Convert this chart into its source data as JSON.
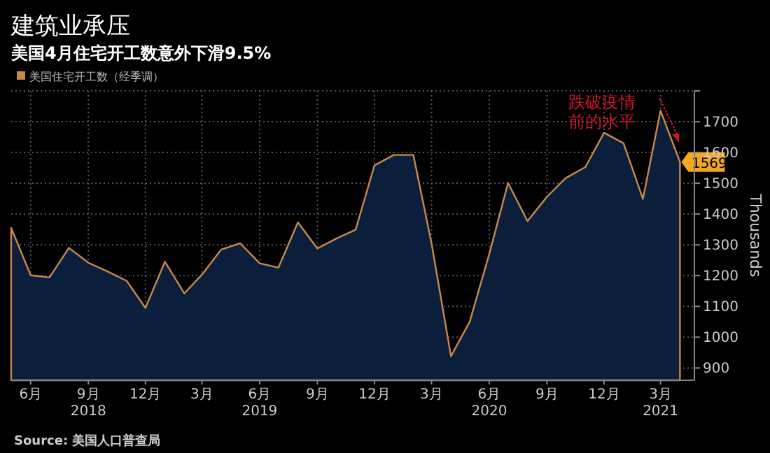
{
  "chart_data": {
    "type": "area",
    "title": "建筑业承压",
    "subtitle": "美国4月住宅开工数意外下滑9.5%",
    "ylabel": "Thousands",
    "annotations": [
      "跌破疫情前的水平",
      "Source: 美国人口普查局"
    ],
    "x": [
      "2018-05",
      "2018-06",
      "2018-07",
      "2018-08",
      "2018-09",
      "2018-10",
      "2018-11",
      "2018-12",
      "2019-01",
      "2019-02",
      "2019-03",
      "2019-04",
      "2019-05",
      "2019-06",
      "2019-07",
      "2019-08",
      "2019-09",
      "2019-10",
      "2019-11",
      "2019-12",
      "2020-01",
      "2020-02",
      "2020-03",
      "2020-04",
      "2020-05",
      "2020-06",
      "2020-07",
      "2020-08",
      "2020-09",
      "2020-10",
      "2020-11",
      "2020-12",
      "2021-01",
      "2021-02",
      "2021-03",
      "2021-04"
    ],
    "series": [
      {
        "name": "美国住宅开工数（经季调）",
        "color": "#c8894a",
        "values": [
          1355,
          1201,
          1194,
          1290,
          1242,
          1214,
          1183,
          1095,
          1245,
          1142,
          1203,
          1285,
          1305,
          1240,
          1226,
          1373,
          1288,
          1320,
          1349,
          1558,
          1592,
          1592,
          1305,
          938,
          1051,
          1270,
          1501,
          1377,
          1456,
          1517,
          1552,
          1664,
          1630,
          1449,
          1736,
          1569
        ],
        "value_labels": [
          null,
          null,
          null,
          null,
          null,
          null,
          null,
          null,
          null,
          null,
          null,
          null,
          null,
          null,
          null,
          null,
          null,
          null,
          null,
          null,
          null,
          null,
          null,
          null,
          null,
          null,
          null,
          null,
          null,
          null,
          null,
          null,
          null,
          null,
          null,
          "1569"
        ]
      }
    ],
    "xlim": [
      "2018-05",
      "2021-04-24"
    ],
    "xticks": [
      {
        "value": "2018-06",
        "label": "6月"
      },
      {
        "value": "2018-09",
        "label": "9月\n2018"
      },
      {
        "value": "2018-12",
        "label": "12月"
      },
      {
        "value": "2019-03",
        "label": "3月"
      },
      {
        "value": "2019-06",
        "label": "6月\n2019"
      },
      {
        "value": "2019-09",
        "label": "9月"
      },
      {
        "value": "2019-12",
        "label": "12月"
      },
      {
        "value": "2020-03",
        "label": "3月"
      },
      {
        "value": "2020-06",
        "label": "6月\n2020"
      },
      {
        "value": "2020-09",
        "label": "9月"
      },
      {
        "value": "2020-12",
        "label": "12月"
      },
      {
        "value": "2021-03",
        "label": "3月\n2021"
      }
    ],
    "ylim": [
      860,
      1800
    ],
    "yticks": [
      900,
      1000,
      1100,
      1200,
      1300,
      1400,
      1500,
      1600,
      1700,
      {
        "value": 1800,
        "label": null
      }
    ],
    "grid": true,
    "legend": "top left"
  }
}
